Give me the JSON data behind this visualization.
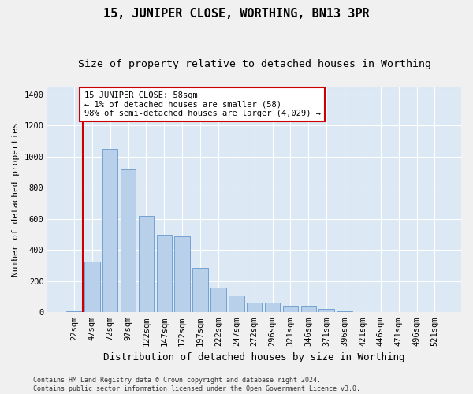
{
  "title": "15, JUNIPER CLOSE, WORTHING, BN13 3PR",
  "subtitle": "Size of property relative to detached houses in Worthing",
  "xlabel": "Distribution of detached houses by size in Worthing",
  "ylabel": "Number of detached properties",
  "categories": [
    "22sqm",
    "47sqm",
    "72sqm",
    "97sqm",
    "122sqm",
    "147sqm",
    "172sqm",
    "197sqm",
    "222sqm",
    "247sqm",
    "272sqm",
    "296sqm",
    "321sqm",
    "346sqm",
    "371sqm",
    "396sqm",
    "421sqm",
    "446sqm",
    "471sqm",
    "496sqm",
    "521sqm"
  ],
  "values": [
    5,
    325,
    1050,
    920,
    620,
    500,
    490,
    285,
    160,
    110,
    60,
    60,
    40,
    40,
    20,
    5,
    2,
    2,
    2,
    2,
    2
  ],
  "bar_color": "#b8d0ea",
  "bar_edge_color": "#6699cc",
  "annotation_text": "15 JUNIPER CLOSE: 58sqm\n← 1% of detached houses are smaller (58)\n98% of semi-detached houses are larger (4,029) →",
  "annotation_box_color": "#ffffff",
  "annotation_box_edge_color": "#cc0000",
  "ylim": [
    0,
    1450
  ],
  "yticks": [
    0,
    200,
    400,
    600,
    800,
    1000,
    1200,
    1400
  ],
  "background_color": "#dce9f5",
  "grid_color": "#ffffff",
  "fig_background_color": "#f0f0f0",
  "footer_text": "Contains HM Land Registry data © Crown copyright and database right 2024.\nContains public sector information licensed under the Open Government Licence v3.0.",
  "title_fontsize": 11,
  "subtitle_fontsize": 9.5,
  "xlabel_fontsize": 9,
  "ylabel_fontsize": 8,
  "tick_fontsize": 7.5,
  "annotation_fontsize": 7.5,
  "footer_fontsize": 6
}
